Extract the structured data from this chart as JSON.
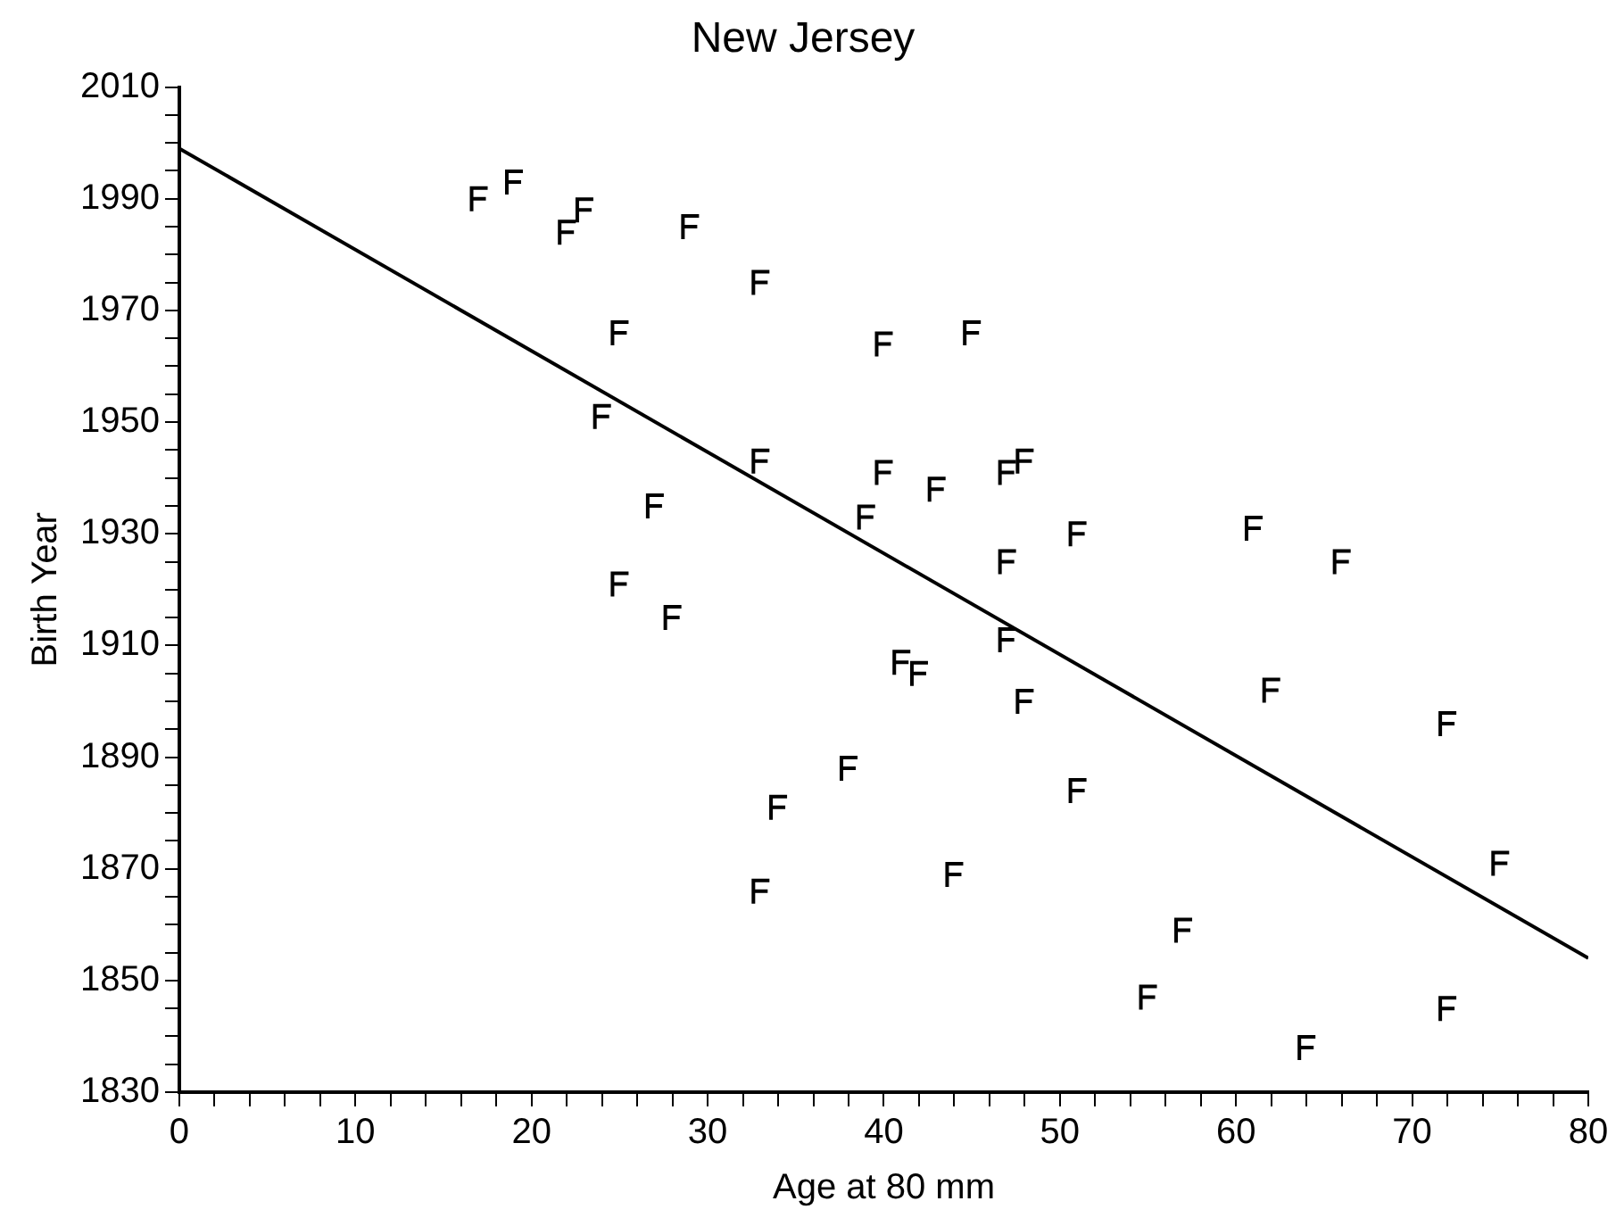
{
  "chart_data": {
    "type": "scatter",
    "title": "New Jersey",
    "xlabel": "Age at 80 mm",
    "ylabel": "Birth Year",
    "xlim": [
      0,
      80
    ],
    "ylim": [
      1830,
      2010
    ],
    "xticks": [
      0,
      {
        "value": 2,
        "label": null
      },
      {
        "value": 4,
        "label": null
      },
      {
        "value": 6,
        "label": null
      },
      {
        "value": 8,
        "label": null
      },
      10,
      {
        "value": 12,
        "label": null
      },
      {
        "value": 14,
        "label": null
      },
      {
        "value": 16,
        "label": null
      },
      {
        "value": 18,
        "label": null
      },
      20,
      {
        "value": 22,
        "label": null
      },
      {
        "value": 24,
        "label": null
      },
      {
        "value": 26,
        "label": null
      },
      {
        "value": 28,
        "label": null
      },
      30,
      {
        "value": 32,
        "label": null
      },
      {
        "value": 34,
        "label": null
      },
      {
        "value": 36,
        "label": null
      },
      {
        "value": 38,
        "label": null
      },
      40,
      {
        "value": 42,
        "label": null
      },
      {
        "value": 44,
        "label": null
      },
      {
        "value": 46,
        "label": null
      },
      {
        "value": 48,
        "label": null
      },
      50,
      {
        "value": 52,
        "label": null
      },
      {
        "value": 54,
        "label": null
      },
      {
        "value": 56,
        "label": null
      },
      {
        "value": 58,
        "label": null
      },
      60,
      {
        "value": 62,
        "label": null
      },
      {
        "value": 64,
        "label": null
      },
      {
        "value": 66,
        "label": null
      },
      {
        "value": 68,
        "label": null
      },
      70,
      {
        "value": 72,
        "label": null
      },
      {
        "value": 74,
        "label": null
      },
      {
        "value": 76,
        "label": null
      },
      {
        "value": 78,
        "label": null
      },
      80
    ],
    "yticks": [
      1830,
      {
        "value": 1835,
        "label": null
      },
      {
        "value": 1840,
        "label": null
      },
      {
        "value": 1845,
        "label": null
      },
      1850,
      {
        "value": 1855,
        "label": null
      },
      {
        "value": 1860,
        "label": null
      },
      {
        "value": 1865,
        "label": null
      },
      1870,
      {
        "value": 1875,
        "label": null
      },
      {
        "value": 1880,
        "label": null
      },
      {
        "value": 1885,
        "label": null
      },
      1890,
      {
        "value": 1895,
        "label": null
      },
      {
        "value": 1900,
        "label": null
      },
      {
        "value": 1905,
        "label": null
      },
      1910,
      {
        "value": 1915,
        "label": null
      },
      {
        "value": 1920,
        "label": null
      },
      {
        "value": 1925,
        "label": null
      },
      1930,
      {
        "value": 1935,
        "label": null
      },
      {
        "value": 1940,
        "label": null
      },
      {
        "value": 1945,
        "label": null
      },
      1950,
      {
        "value": 1955,
        "label": null
      },
      {
        "value": 1960,
        "label": null
      },
      {
        "value": 1965,
        "label": null
      },
      1970,
      {
        "value": 1975,
        "label": null
      },
      {
        "value": 1980,
        "label": null
      },
      {
        "value": 1985,
        "label": null
      },
      1990,
      {
        "value": 1995,
        "label": null
      },
      {
        "value": 2000,
        "label": null
      },
      {
        "value": 2005,
        "label": null
      },
      2010
    ],
    "grid": false,
    "legend": false,
    "series": [
      {
        "color": "#000000",
        "x": [
          17,
          19,
          23,
          22,
          29,
          33,
          25,
          24,
          33,
          27,
          25,
          28,
          34,
          33,
          38,
          40,
          45,
          40,
          43,
          47,
          48,
          39,
          51,
          47,
          61,
          66,
          47,
          41,
          42,
          48,
          62,
          72,
          51,
          44,
          57,
          55,
          75,
          72,
          64
        ],
        "values": [
          1990,
          1993,
          1988,
          1984,
          1985,
          1975,
          1966,
          1951,
          1943,
          1935,
          1921,
          1915,
          1881,
          1866,
          1888,
          1964,
          1966,
          1941,
          1938,
          1941,
          1943,
          1933,
          1930,
          1925,
          1931,
          1925,
          1911,
          1907,
          1905,
          1900,
          1902,
          1896,
          1884,
          1869,
          1859,
          1847,
          1871,
          1845,
          1838
        ]
      },
      {
        "type": "line",
        "color": "#000000",
        "x": [
          0,
          80
        ],
        "values": [
          1999,
          1854
        ],
        "line_style": "solid"
      }
    ]
  }
}
